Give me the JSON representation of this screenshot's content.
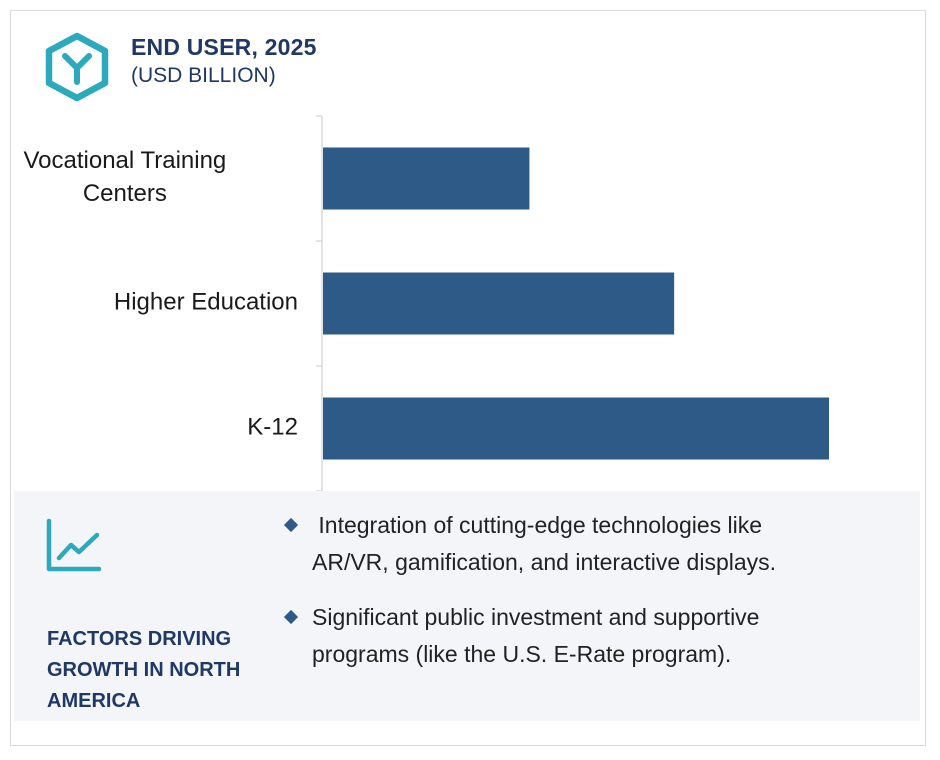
{
  "header": {
    "title": "END USER, 2025",
    "subtitle": "(USD BILLION)",
    "logo_icon": "hexagon-y-logo-icon"
  },
  "colors": {
    "bar": "#2e5a88",
    "accent": "#2ca9bc",
    "heading": "#1f3864",
    "panel": "#f4f5f8"
  },
  "chart_data": {
    "type": "bar",
    "orientation": "horizontal",
    "categories": [
      [
        "Vocational Training",
        "Centers"
      ],
      [
        "Higher Education"
      ],
      [
        "K-12"
      ]
    ],
    "values": [
      2.04,
      3.47,
      5.0
    ],
    "xlim": [
      0,
      5.0
    ],
    "title": "END USER, 2025",
    "subtitle": "(USD BILLION)",
    "grid": false,
    "value_axis_visible": false
  },
  "factors": {
    "icon": "line-chart-icon",
    "title_lines": [
      "FACTORS DRIVING",
      "GROWTH IN NORTH",
      "AMERICA"
    ],
    "bullets": [
      {
        "lines": [
          " Integration of cutting-edge technologies like",
          "AR/VR, gamification, and interactive displays."
        ]
      },
      {
        "lines": [
          "Significant public investment and supportive",
          "programs (like the U.S. E-Rate program)."
        ]
      }
    ]
  }
}
